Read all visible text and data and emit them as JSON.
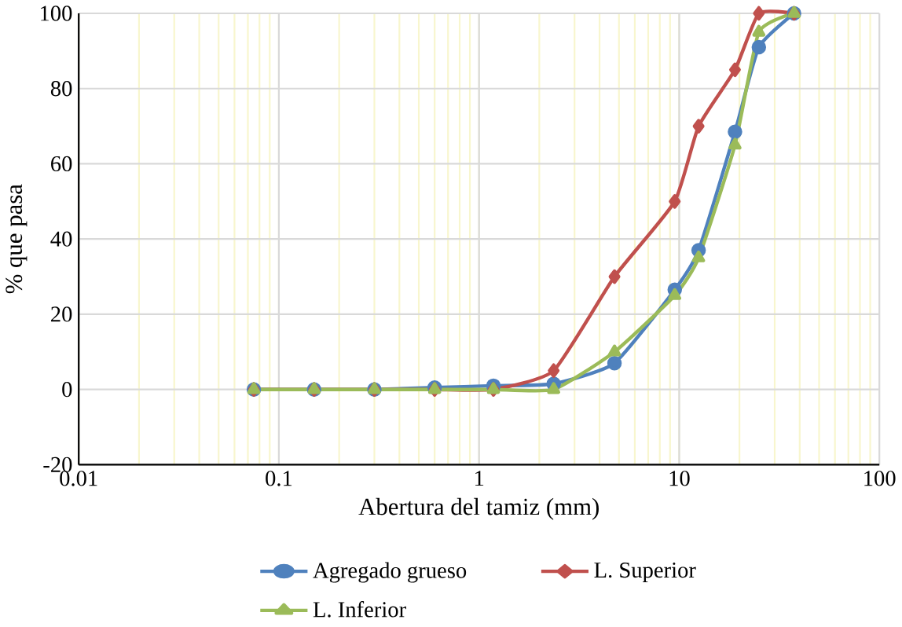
{
  "chart_data": {
    "type": "line",
    "xlabel": "Abertura del tamiz (mm)",
    "ylabel": "% que pasa",
    "log": "x",
    "xlim": [
      0.01,
      100
    ],
    "xticks": [
      0.01,
      0.1,
      1,
      10,
      100
    ],
    "ylim": [
      -20,
      100
    ],
    "yticks": [
      -20,
      0,
      20,
      40,
      60,
      80,
      100
    ],
    "grid": true,
    "legend": "bottom",
    "line_style": "solid",
    "x": [
      0.075,
      0.15,
      0.3,
      0.6,
      1.18,
      2.36,
      4.75,
      9.5,
      12.5,
      19,
      25,
      37.5
    ],
    "series": [
      {
        "name": "Agregado grueso",
        "color": "#4f81bd",
        "marker": "circle",
        "values": [
          0,
          0,
          0,
          0.5,
          1,
          1.5,
          7,
          26.5,
          37,
          68.5,
          91,
          100
        ]
      },
      {
        "name": "L. Superior",
        "color": "#c0504d",
        "marker": "diamond",
        "values": [
          0,
          0,
          0,
          0,
          0,
          5,
          30,
          50,
          70,
          85,
          100,
          100
        ]
      },
      {
        "name": "L. Inferior",
        "color": "#9bbb59",
        "marker": "triangle",
        "values": [
          0,
          0,
          0,
          0,
          0,
          0,
          10,
          25,
          35,
          65,
          95,
          100
        ]
      }
    ]
  }
}
